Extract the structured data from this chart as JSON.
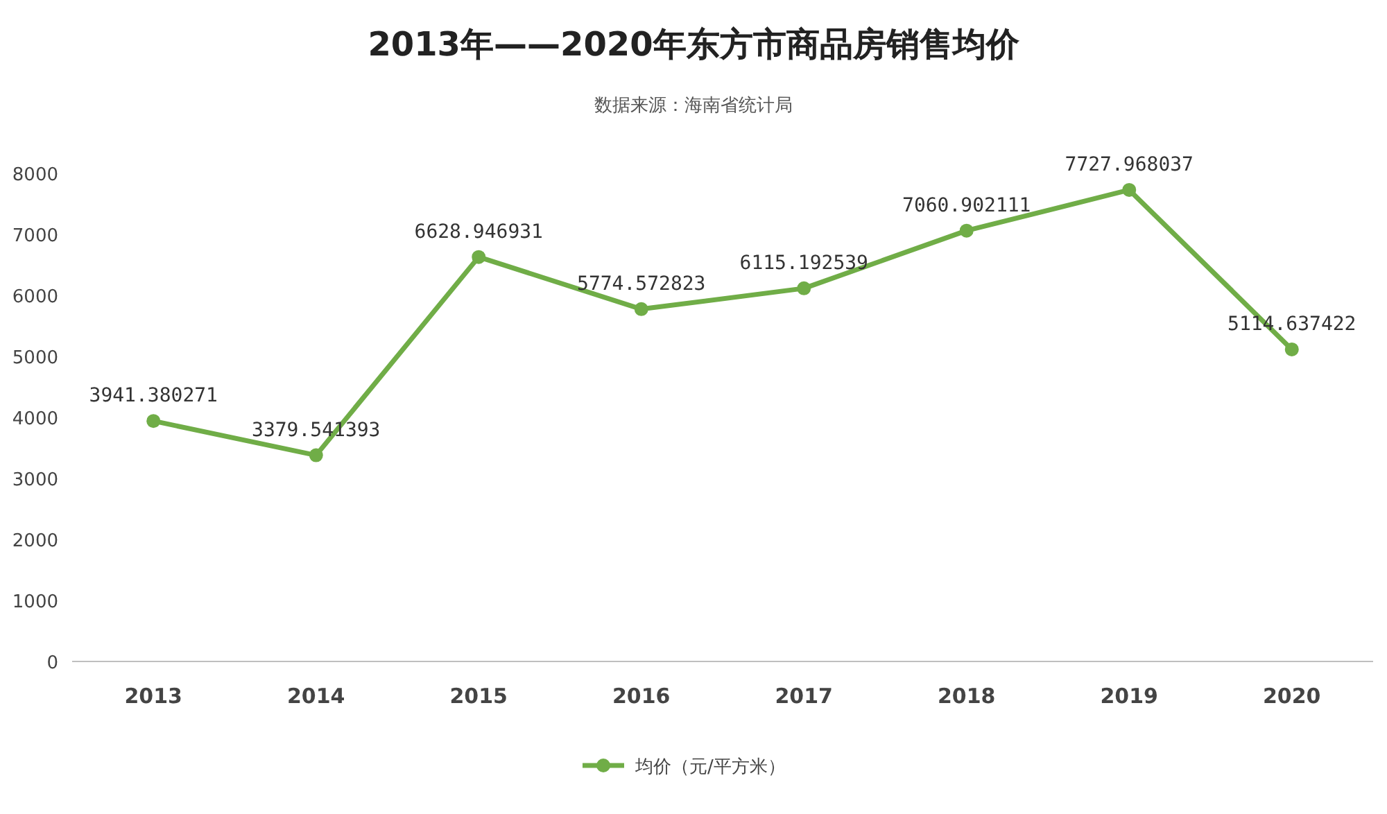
{
  "chart_data": {
    "type": "line",
    "title": "2013年——2020年东方市商品房销售均价",
    "subtitle": "数据来源：海南省统计局",
    "categories": [
      "2013",
      "2014",
      "2015",
      "2016",
      "2017",
      "2018",
      "2019",
      "2020"
    ],
    "series": [
      {
        "name": "均价（元/平方米）",
        "color": "#70ad47",
        "values": [
          3941.380271,
          3379.541393,
          6628.946931,
          5774.572823,
          6115.192539,
          7060.902111,
          7727.968037,
          5114.637422
        ]
      }
    ],
    "ylim": [
      0,
      8000
    ],
    "yticks": [
      0,
      1000,
      2000,
      3000,
      4000,
      5000,
      6000,
      7000,
      8000
    ],
    "data_labels": true,
    "legend": "bottom",
    "marker": "circle",
    "line_style": "solid",
    "grid": false
  }
}
